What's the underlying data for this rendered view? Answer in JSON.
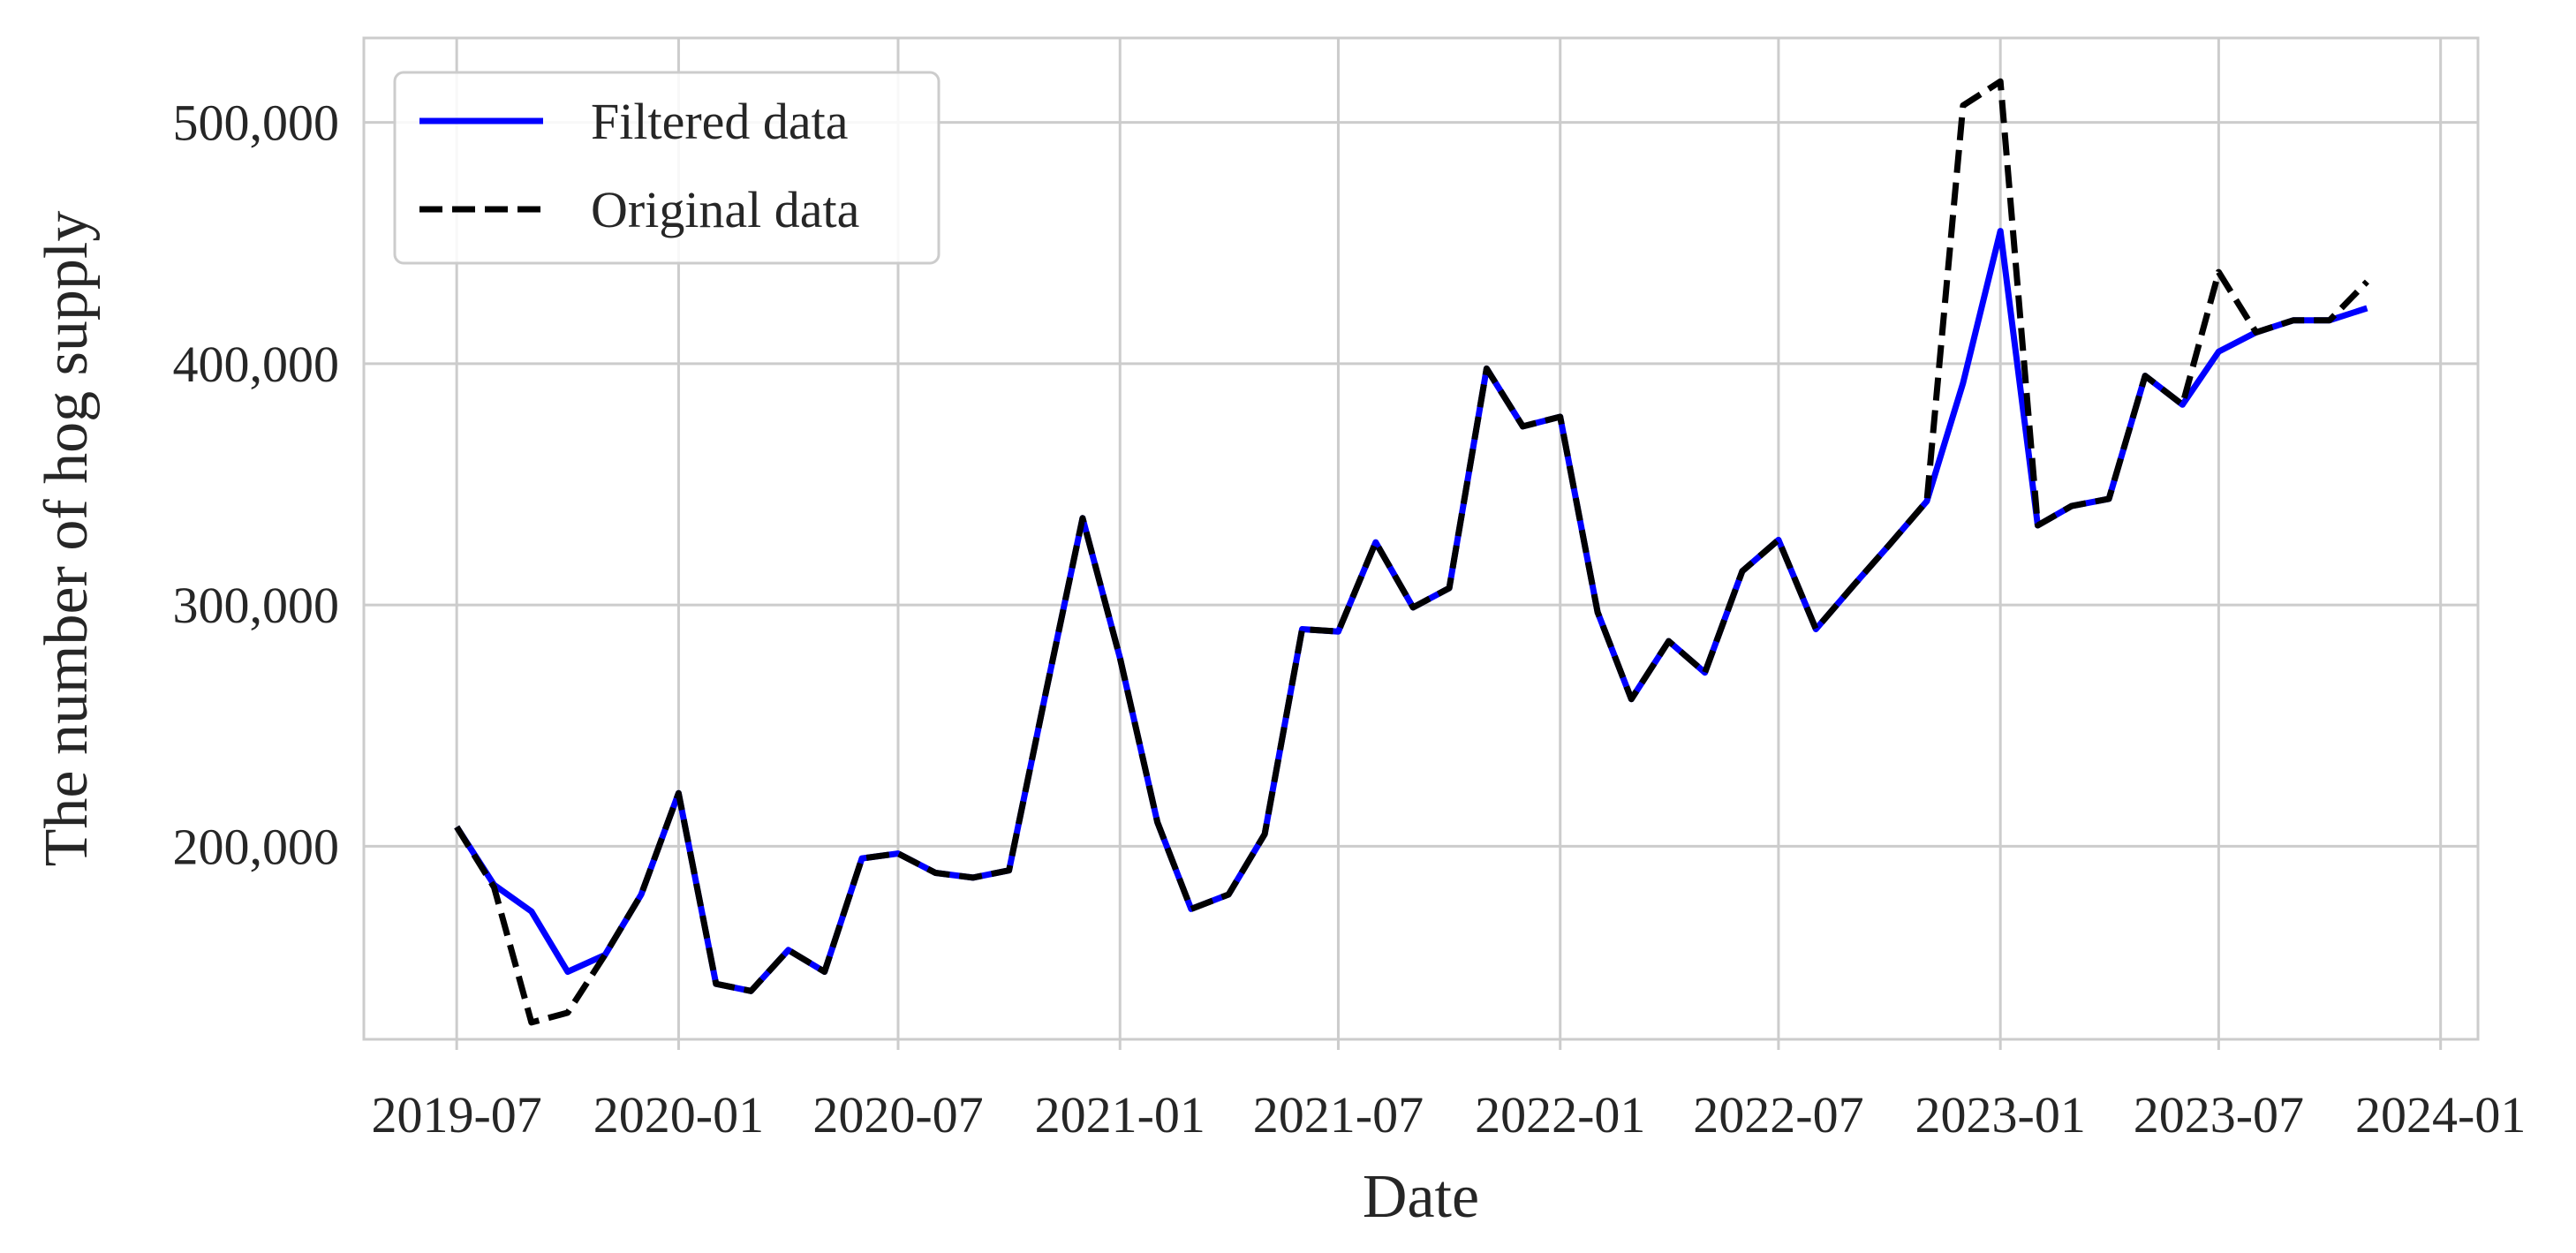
{
  "chart_data": {
    "type": "line",
    "title": "",
    "xlabel": "Date",
    "ylabel": "The number of hog supply",
    "x_ticks": [
      "2019-07",
      "2020-01",
      "2020-07",
      "2021-01",
      "2021-07",
      "2022-01",
      "2022-07",
      "2023-01",
      "2023-07",
      "2024-01"
    ],
    "y_ticks": [
      200000,
      300000,
      400000,
      500000
    ],
    "y_tick_labels": [
      "200,000",
      "300,000",
      "400,000",
      "500,000"
    ],
    "xlim": [
      "2019-04-15",
      "2024-02-01"
    ],
    "ylim": [
      120000,
      535000
    ],
    "grid": true,
    "legend_position": "top-left",
    "x": [
      "2019-07",
      "2019-08",
      "2019-09",
      "2019-10",
      "2019-11",
      "2019-12",
      "2020-01",
      "2020-02",
      "2020-03",
      "2020-04",
      "2020-05",
      "2020-06",
      "2020-07",
      "2020-08",
      "2020-09",
      "2020-10",
      "2020-11",
      "2020-12",
      "2021-01",
      "2021-02",
      "2021-03",
      "2021-04",
      "2021-05",
      "2021-06",
      "2021-07",
      "2021-08",
      "2021-09",
      "2021-10",
      "2021-11",
      "2021-12",
      "2022-01",
      "2022-02",
      "2022-03",
      "2022-04",
      "2022-05",
      "2022-06",
      "2022-07",
      "2022-08",
      "2022-09",
      "2022-10",
      "2022-11",
      "2022-12",
      "2023-01",
      "2023-02",
      "2023-03",
      "2023-04",
      "2023-05",
      "2023-06",
      "2023-07",
      "2023-08",
      "2023-09",
      "2023-10",
      "2023-11"
    ],
    "series": [
      {
        "name": "Filtered data",
        "color": "#0000ff",
        "style": "solid",
        "values": [
          208000,
          184000,
          173000,
          148000,
          155000,
          180000,
          222000,
          143000,
          140000,
          157000,
          148000,
          195000,
          197000,
          189000,
          187000,
          190000,
          265000,
          336000,
          278000,
          210000,
          174000,
          180000,
          205000,
          290000,
          289000,
          326000,
          299000,
          307000,
          398000,
          374000,
          378000,
          297000,
          261000,
          285000,
          272000,
          314000,
          327000,
          290000,
          308000,
          325000,
          343000,
          392000,
          455000,
          333000,
          341000,
          344000,
          395000,
          383000,
          405000,
          413000,
          418000,
          418000,
          423000
        ]
      },
      {
        "name": "Original data",
        "color": "#000000",
        "style": "dashed",
        "values": [
          208000,
          183000,
          127000,
          131000,
          155000,
          180000,
          222000,
          143000,
          140000,
          157000,
          148000,
          195000,
          197000,
          189000,
          187000,
          190000,
          265000,
          336000,
          278000,
          210000,
          174000,
          180000,
          205000,
          290000,
          289000,
          326000,
          299000,
          307000,
          398000,
          374000,
          378000,
          297000,
          261000,
          285000,
          272000,
          314000,
          327000,
          290000,
          308000,
          325000,
          343000,
          507000,
          517000,
          333000,
          341000,
          344000,
          395000,
          383000,
          438000,
          413000,
          418000,
          418000,
          434000
        ]
      }
    ]
  }
}
